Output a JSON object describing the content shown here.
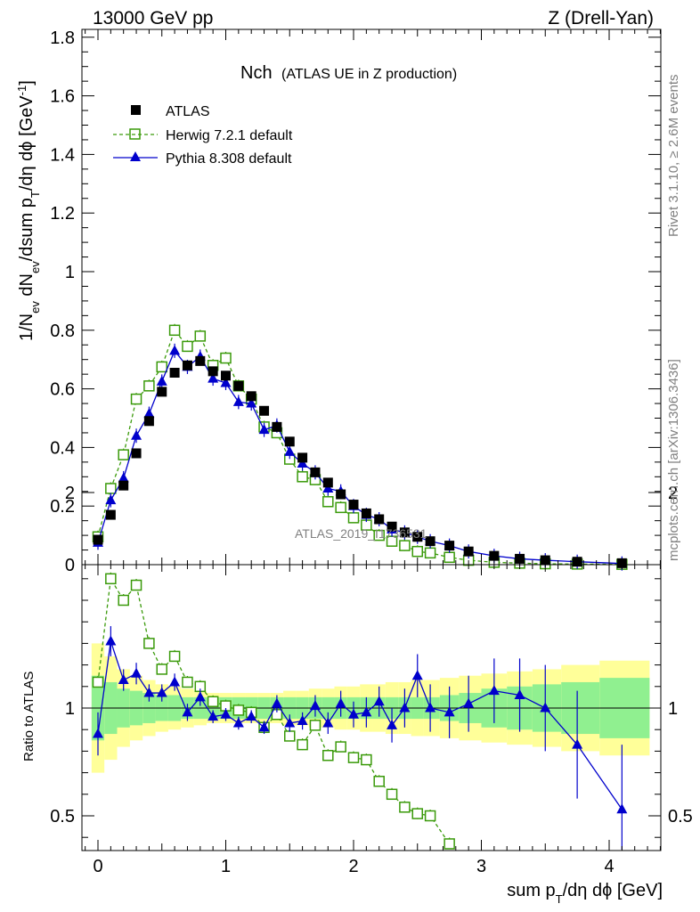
{
  "header": {
    "left": "13000 GeV pp",
    "right": "Z (Drell-Yan)"
  },
  "plot_title": {
    "main": "Nch",
    "sub": "(ATLAS UE in Z production)"
  },
  "side_text": {
    "rivet": "Rivet 3.1.10, ≥ 2.6M events",
    "mcplots": "mcplots.cern.ch [arXiv:1306.3436]"
  },
  "watermark": "ATLAS_2019_I1736531",
  "legend": {
    "atlas": "ATLAS",
    "herwig": "Herwig 7.2.1 default",
    "pythia": "Pythia 8.308 default"
  },
  "colors": {
    "atlas": "#000000",
    "herwig": "#3a9a0a",
    "pythia": "#0000cc",
    "band_inner": "#90f090",
    "band_outer": "#ffff99"
  },
  "chart_data": [
    {
      "type": "scatter",
      "panel": "main",
      "ylabel": "1/N_ev dN_ev/dsum p_T/dη dϕ [GeV^-1]",
      "xlim": [
        -0.1,
        4.4
      ],
      "ylim": [
        0,
        1.82
      ],
      "yticks": [
        "0",
        "0.2",
        "0.4",
        "0.6",
        "0.8",
        "1",
        "1.2",
        "1.4",
        "1.6",
        "1.8"
      ],
      "xticks": [
        "0",
        "1",
        "2",
        "3",
        "4"
      ],
      "series": [
        {
          "name": "ATLAS",
          "x": [
            0,
            0.1,
            0.2,
            0.3,
            0.4,
            0.5,
            0.6,
            0.7,
            0.8,
            0.9,
            1.0,
            1.1,
            1.2,
            1.3,
            1.4,
            1.5,
            1.6,
            1.7,
            1.8,
            1.9,
            2.0,
            2.1,
            2.2,
            2.3,
            2.4,
            2.5,
            2.6,
            2.75,
            2.9,
            3.1,
            3.3,
            3.5,
            3.75,
            4.1
          ],
          "y": [
            0.085,
            0.17,
            0.27,
            0.38,
            0.49,
            0.59,
            0.655,
            0.68,
            0.695,
            0.66,
            0.645,
            0.61,
            0.575,
            0.525,
            0.47,
            0.42,
            0.365,
            0.315,
            0.28,
            0.24,
            0.205,
            0.175,
            0.155,
            0.13,
            0.11,
            0.095,
            0.08,
            0.065,
            0.045,
            0.03,
            0.02,
            0.015,
            0.01,
            0.005
          ]
        },
        {
          "name": "Herwig 7.2.1 default",
          "x": [
            0,
            0.1,
            0.2,
            0.3,
            0.4,
            0.5,
            0.6,
            0.7,
            0.8,
            0.9,
            1.0,
            1.1,
            1.2,
            1.3,
            1.4,
            1.5,
            1.6,
            1.7,
            1.8,
            1.9,
            2.0,
            2.1,
            2.2,
            2.3,
            2.4,
            2.5,
            2.6,
            2.75,
            2.9,
            3.1,
            3.3,
            3.5,
            3.75,
            4.1
          ],
          "y": [
            0.095,
            0.26,
            0.375,
            0.565,
            0.61,
            0.675,
            0.8,
            0.745,
            0.78,
            0.68,
            0.705,
            0.61,
            0.565,
            0.47,
            0.45,
            0.36,
            0.3,
            0.29,
            0.215,
            0.195,
            0.16,
            0.135,
            0.1,
            0.08,
            0.065,
            0.045,
            0.04,
            0.025,
            0.015,
            0.008,
            0.005,
            0.003,
            0.002,
            0.001
          ]
        },
        {
          "name": "Pythia 8.308 default",
          "x": [
            0,
            0.1,
            0.2,
            0.3,
            0.4,
            0.5,
            0.6,
            0.7,
            0.8,
            0.9,
            1.0,
            1.1,
            1.2,
            1.3,
            1.4,
            1.5,
            1.6,
            1.7,
            1.8,
            1.9,
            2.0,
            2.1,
            2.2,
            2.3,
            2.4,
            2.5,
            2.6,
            2.75,
            2.9,
            3.1,
            3.3,
            3.5,
            3.75,
            4.1
          ],
          "y": [
            0.075,
            0.22,
            0.295,
            0.44,
            0.515,
            0.625,
            0.73,
            0.675,
            0.71,
            0.635,
            0.62,
            0.555,
            0.55,
            0.46,
            0.475,
            0.385,
            0.345,
            0.315,
            0.26,
            0.25,
            0.2,
            0.17,
            0.155,
            0.12,
            0.11,
            0.095,
            0.08,
            0.065,
            0.045,
            0.03,
            0.02,
            0.015,
            0.01,
            0.004
          ]
        }
      ]
    },
    {
      "type": "line",
      "panel": "ratio",
      "ylabel": "Ratio to ATLAS",
      "xlabel": "sum p_T/dη dϕ [GeV]",
      "xlim": [
        -0.1,
        4.4
      ],
      "ylim": [
        0.35,
        2.3
      ],
      "yticks": [
        "0.5",
        "1",
        "2"
      ],
      "xticks": [
        "0",
        "1",
        "2",
        "3",
        "4"
      ],
      "series": [
        {
          "name": "Herwig 7.2.1 default",
          "x": [
            0,
            0.1,
            0.2,
            0.3,
            0.4,
            0.5,
            0.6,
            0.7,
            0.8,
            0.9,
            1.0,
            1.1,
            1.2,
            1.3,
            1.4,
            1.5,
            1.6,
            1.7,
            1.8,
            1.9,
            2.0,
            2.1,
            2.2,
            2.3,
            2.4,
            2.5,
            2.6,
            2.75
          ],
          "y": [
            1.12,
            1.6,
            1.5,
            1.57,
            1.3,
            1.18,
            1.24,
            1.12,
            1.1,
            1.03,
            1.01,
            0.99,
            0.98,
            0.91,
            0.97,
            0.87,
            0.83,
            0.92,
            0.78,
            0.82,
            0.77,
            0.76,
            0.66,
            0.6,
            0.54,
            0.51,
            0.5,
            0.37
          ]
        },
        {
          "name": "Pythia 8.308 default",
          "x": [
            0,
            0.1,
            0.2,
            0.3,
            0.4,
            0.5,
            0.6,
            0.7,
            0.8,
            0.9,
            1.0,
            1.1,
            1.2,
            1.3,
            1.4,
            1.5,
            1.6,
            1.7,
            1.8,
            1.9,
            2.0,
            2.1,
            2.2,
            2.3,
            2.4,
            2.5,
            2.6,
            2.75,
            2.9,
            3.1,
            3.3,
            3.5,
            3.75,
            4.1
          ],
          "y": [
            0.88,
            1.31,
            1.13,
            1.16,
            1.07,
            1.07,
            1.12,
            0.98,
            1.05,
            0.96,
            0.97,
            0.93,
            0.96,
            0.91,
            1.02,
            0.93,
            0.94,
            1.01,
            0.93,
            1.02,
            0.97,
            0.98,
            1.03,
            0.92,
            1.0,
            1.15,
            1.0,
            0.98,
            1.02,
            1.08,
            1.06,
            1.0,
            0.83,
            0.53
          ]
        }
      ]
    }
  ]
}
